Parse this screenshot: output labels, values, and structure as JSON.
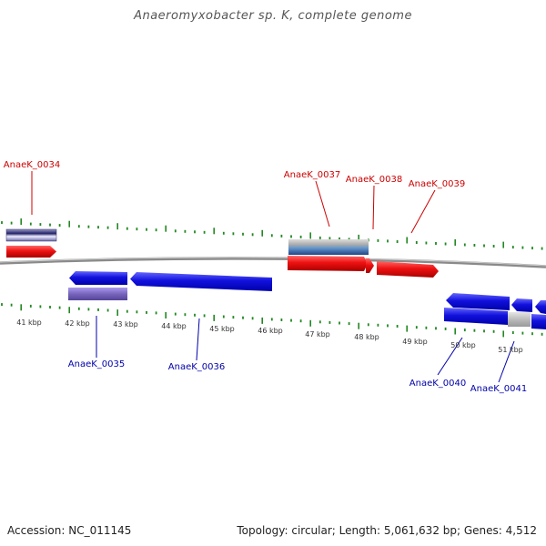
{
  "title": "Anaeromyxobacter sp. K, complete genome",
  "footer": {
    "accession": "Accession: NC_011145",
    "info": "Topology: circular; Length: 5,061,632 bp; Genes: 4,512"
  },
  "colors": {
    "forward_gene": "#ee1111",
    "reverse_gene": "#1111dd",
    "backbone": "#888888",
    "tick": "#228822",
    "label_forward": "#cc0000",
    "label_reverse": "#0000aa",
    "gray_track": "#bbbbbb",
    "purple_track": "#7766bb"
  },
  "scale_labels": [
    "41 kbp",
    "42 kbp",
    "43 kbp",
    "44 kbp",
    "45 kbp",
    "46 kbp",
    "47 kbp",
    "48 kbp",
    "49 kbp",
    "50 kbp",
    "51 kbp"
  ],
  "gene_labels": {
    "forward": [
      "AnaeK_0034",
      "AnaeK_0037",
      "AnaeK_0038",
      "AnaeK_0039"
    ],
    "reverse": [
      "AnaeK_0035",
      "AnaeK_0036",
      "AnaeK_0040",
      "AnaeK_0041"
    ]
  }
}
